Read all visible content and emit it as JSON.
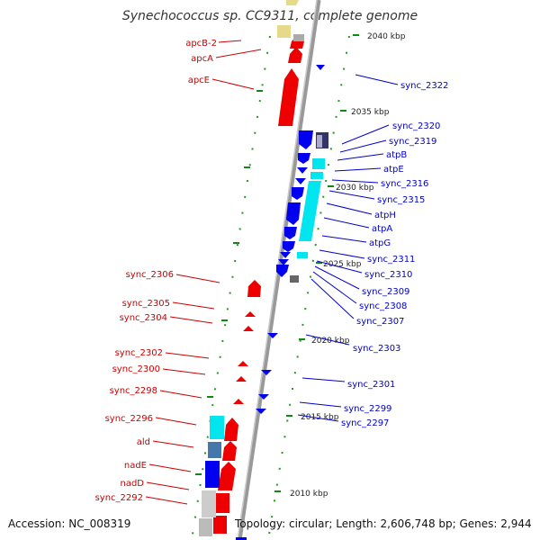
{
  "title": "Synechococcus sp. CC9311, complete genome",
  "accession": "Accession: NC_008319",
  "topology": "Topology: circular; Length: 2,606,748 bp; Genes: 2,944",
  "colors": {
    "reverse_label": "#cc0000",
    "forward_label": "#0000cc",
    "red_feature": "#ee0000",
    "blue_feature": "#0000ee",
    "cyan_feature": "#00e5ee",
    "backbone": "#888888",
    "tick": "#118811"
  },
  "scale_labels": [
    "2040 kbp",
    "2035 kbp",
    "2030 kbp",
    "2025 kbp",
    "2020 kbp",
    "2015 kbp",
    "2010 kbp"
  ],
  "reverse_genes": [
    "apcB-2",
    "apcA",
    "apcE",
    "sync_2306",
    "sync_2305",
    "sync_2304",
    "sync_2302",
    "sync_2300",
    "sync_2298",
    "sync_2296",
    "ald",
    "nadE",
    "nadD",
    "sync_2292"
  ],
  "forward_genes": [
    "sync_2322",
    "sync_2320",
    "sync_2319",
    "atpB",
    "atpE",
    "sync_2316",
    "sync_2315",
    "atpH",
    "atpA",
    "atpG",
    "sync_2311",
    "sync_2310",
    "sync_2309",
    "sync_2308",
    "sync_2307",
    "sync_2303",
    "sync_2301",
    "sync_2299",
    "sync_2297"
  ]
}
